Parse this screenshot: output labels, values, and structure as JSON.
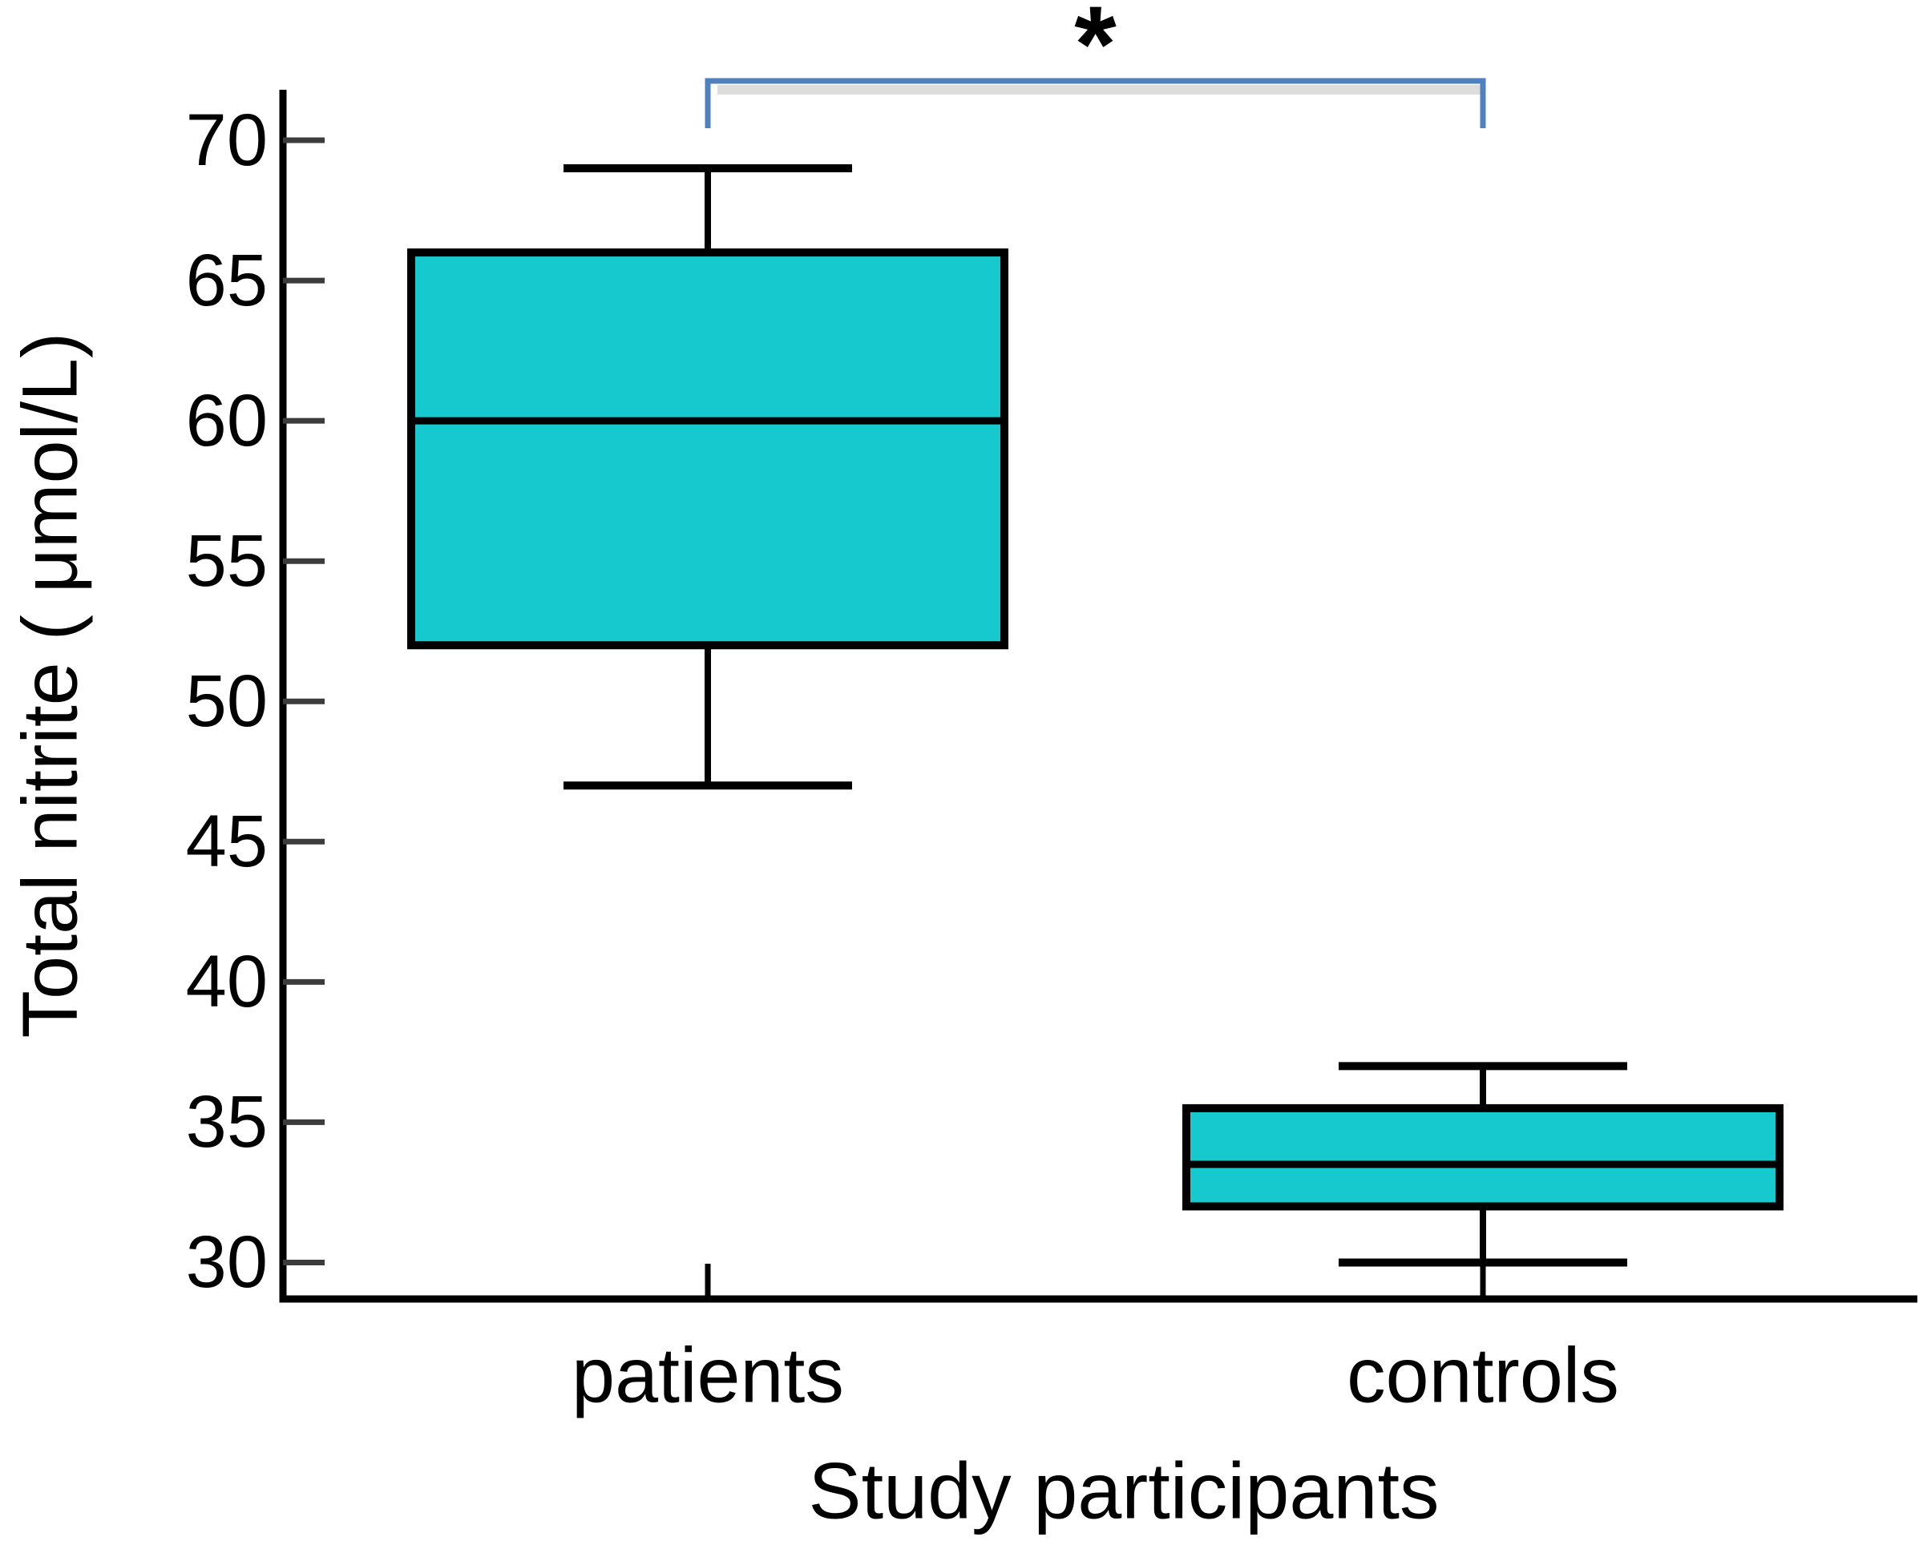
{
  "chart_data": {
    "type": "box",
    "title": "",
    "xlabel": "Study participants",
    "ylabel": "Total nitrite ( μmol/L)",
    "categories": [
      "patients",
      "controls"
    ],
    "series": [
      {
        "name": "patients",
        "whisker_low": 47,
        "q1": 52,
        "median": 60,
        "q3": 66,
        "whisker_high": 69
      },
      {
        "name": "controls",
        "whisker_low": 30,
        "q1": 32,
        "median": 33.5,
        "q3": 35.5,
        "whisker_high": 37
      }
    ],
    "y_ticks": [
      30,
      35,
      40,
      45,
      50,
      55,
      60,
      65,
      70
    ],
    "ylim": [
      28.7,
      71.8
    ],
    "grid": false,
    "legend": null,
    "significance": {
      "label": "*",
      "between": [
        "patients",
        "controls"
      ]
    },
    "colors": {
      "box_fill": "#16c9ce",
      "box_border": "#000000",
      "axis": "#000000",
      "tick": "#3c3c3c",
      "bracket": "#4e81bd",
      "text": "#000000"
    }
  }
}
